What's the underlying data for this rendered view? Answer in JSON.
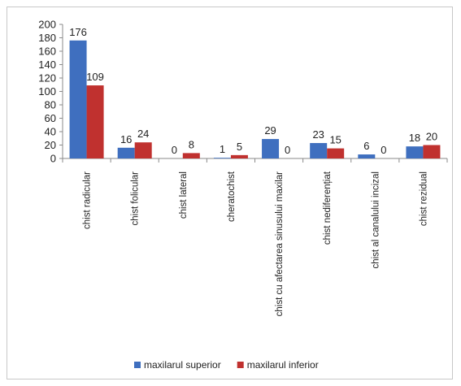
{
  "chart_data": {
    "type": "bar",
    "categories": [
      "chist radicular",
      "chist folicular",
      "chist lateral",
      "cheratochist",
      "chist cu afectarea sinusului maxilar",
      "chist nediferențiat",
      "chist al canalului incizal",
      "chist rezidual"
    ],
    "series": [
      {
        "name": "maxilarul superior",
        "color": "#3f6fbf",
        "values": [
          176,
          16,
          0,
          1,
          29,
          23,
          6,
          18
        ]
      },
      {
        "name": "maxilarul inferior",
        "color": "#c0312f",
        "values": [
          109,
          24,
          8,
          5,
          0,
          15,
          0,
          20
        ]
      }
    ],
    "y_ticks": [
      "0",
      "20",
      "40",
      "60",
      "80",
      "100",
      "120",
      "140",
      "160",
      "180",
      "200"
    ],
    "ylim": [
      0,
      200
    ],
    "grid": false,
    "legend": "bottom",
    "data_labels": true
  }
}
